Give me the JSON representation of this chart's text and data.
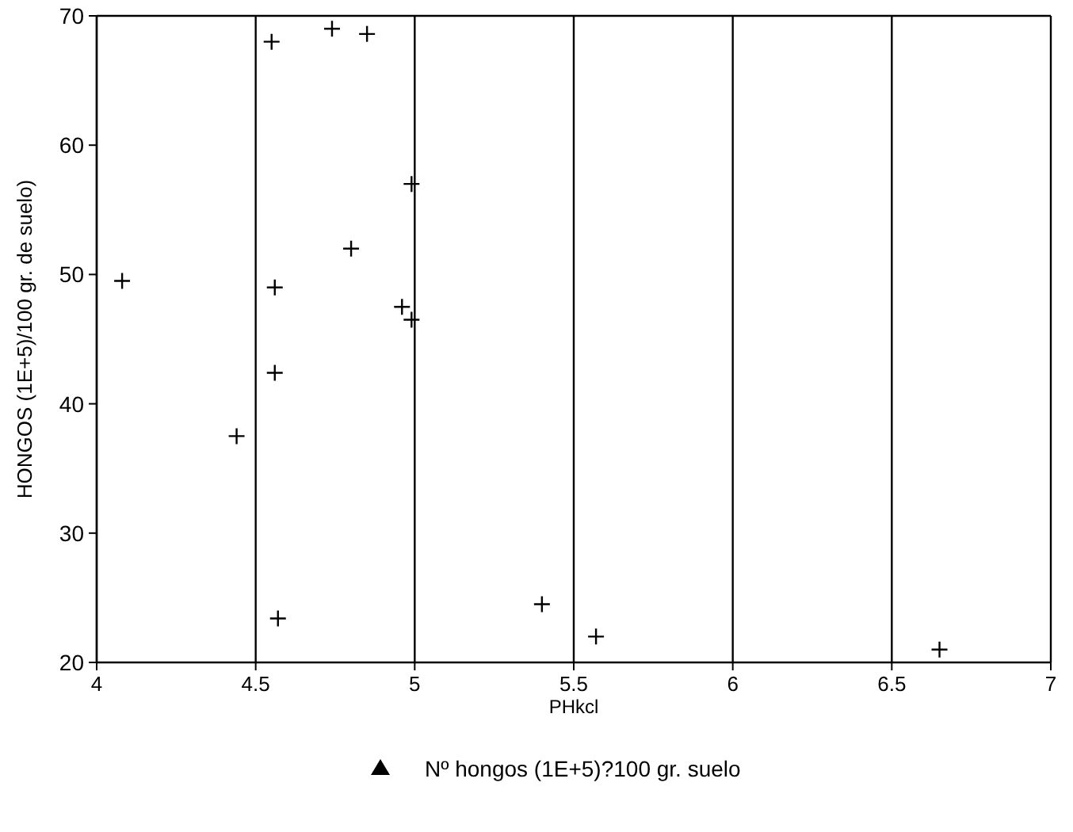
{
  "chart_data": {
    "type": "scatter",
    "xlabel": "PHkcl",
    "ylabel": "HONGOS (1E+5)/100 gr. de suelo)",
    "xlim": [
      4,
      7
    ],
    "xticks": [
      4,
      4.5,
      5,
      5.5,
      6,
      6.5,
      7
    ],
    "ylim": [
      20,
      70
    ],
    "yticks": [
      20,
      30,
      40,
      50,
      60,
      70
    ],
    "grid": "x",
    "legend": "bottom",
    "marker": "cross",
    "series": [
      {
        "name": "Nº hongos (1E+5)?100 gr. suelo",
        "color": "#000000",
        "x": [
          4.08,
          4.44,
          4.55,
          4.74,
          4.85,
          4.99,
          4.8,
          4.56,
          4.96,
          4.99,
          4.56,
          4.57,
          5.4,
          5.57,
          6.65
        ],
        "values": [
          49.5,
          37.5,
          68,
          69,
          68.6,
          57,
          52,
          49,
          47.5,
          46.5,
          42.4,
          23.4,
          24.5,
          22,
          21
        ]
      }
    ]
  }
}
